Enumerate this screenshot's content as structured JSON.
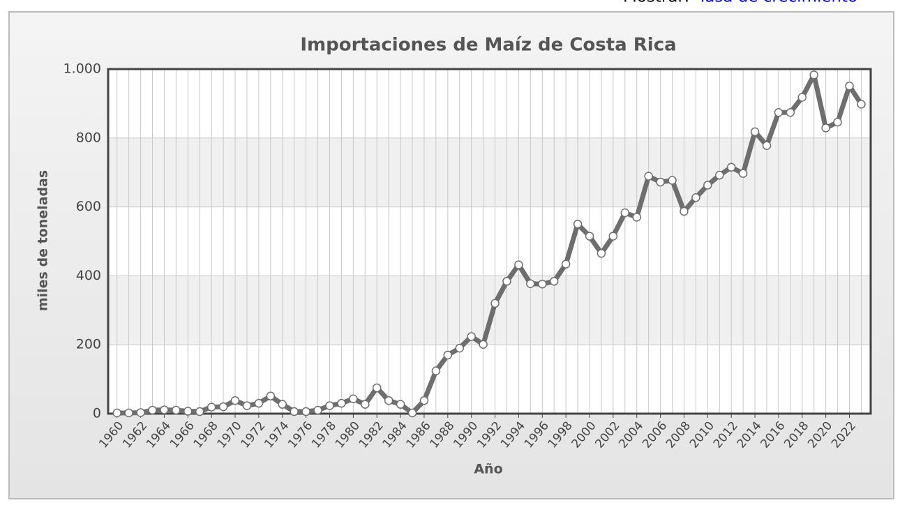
{
  "top_bar": {
    "label": "Mostrar:",
    "link": "Tasa de crecimiento"
  },
  "chart_data": {
    "type": "line",
    "title": "Importaciones de Maíz de Costa Rica",
    "xlabel": "Año",
    "ylabel": "miles de toneladas",
    "x": [
      1960,
      1961,
      1962,
      1963,
      1964,
      1965,
      1966,
      1967,
      1968,
      1969,
      1970,
      1971,
      1972,
      1973,
      1974,
      1975,
      1976,
      1977,
      1978,
      1979,
      1980,
      1981,
      1982,
      1983,
      1984,
      1985,
      1986,
      1987,
      1988,
      1989,
      1990,
      1991,
      1992,
      1993,
      1994,
      1995,
      1996,
      1997,
      1998,
      1999,
      2000,
      2001,
      2002,
      2003,
      2004,
      2005,
      2006,
      2007,
      2008,
      2009,
      2010,
      2011,
      2012,
      2013,
      2014,
      2015,
      2016,
      2017,
      2018,
      2019,
      2020,
      2021,
      2022,
      2023
    ],
    "values": [
      2,
      2,
      3,
      10,
      11,
      10,
      7,
      6,
      19,
      20,
      38,
      23,
      30,
      51,
      27,
      6,
      6,
      10,
      23,
      30,
      43,
      27,
      75,
      38,
      27,
      2,
      38,
      124,
      170,
      190,
      224,
      201,
      320,
      384,
      432,
      377,
      376,
      384,
      434,
      550,
      515,
      465,
      515,
      583,
      570,
      689,
      672,
      677,
      587,
      627,
      663,
      692,
      715,
      697,
      818,
      778,
      874,
      874,
      918,
      983,
      829,
      846,
      951,
      898
    ],
    "color": "#6e6e6e",
    "xlim": [
      1959.25,
      2023.8
    ],
    "xticks": [
      1960,
      1962,
      1964,
      1966,
      1968,
      1970,
      1972,
      1974,
      1976,
      1978,
      1980,
      1982,
      1984,
      1986,
      1988,
      1990,
      1992,
      1994,
      1996,
      1998,
      2000,
      2002,
      2004,
      2006,
      2008,
      2010,
      2012,
      2014,
      2016,
      2018,
      2020,
      2022
    ],
    "ylim": [
      0,
      1000
    ],
    "yticks": [
      0,
      200,
      400,
      600,
      800,
      {
        "value": 1000,
        "label": "1.000"
      }
    ],
    "grid": true
  }
}
